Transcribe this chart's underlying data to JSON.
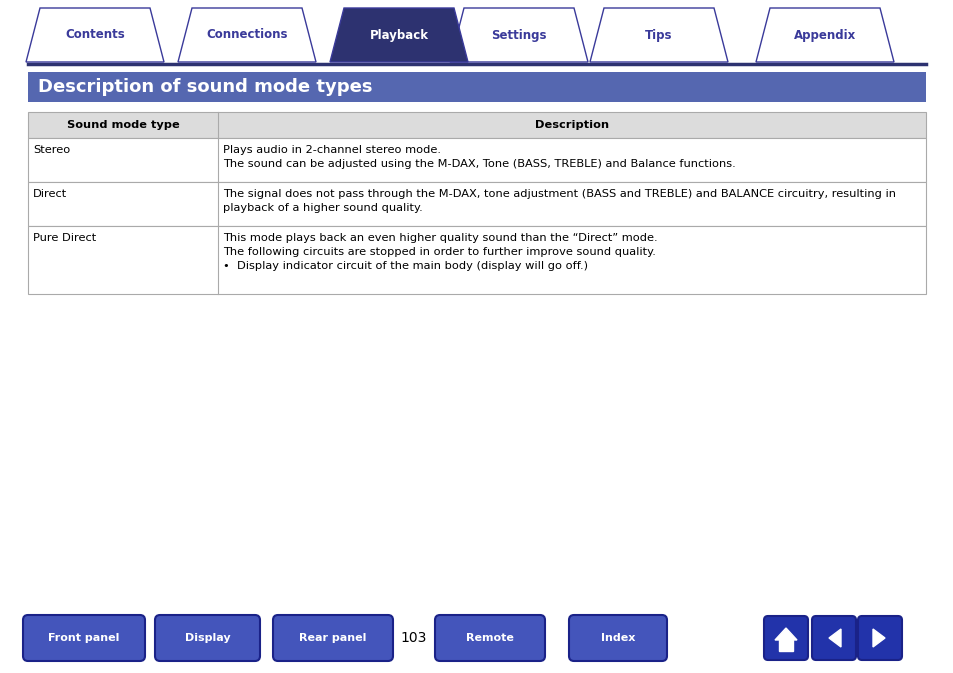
{
  "bg_color": "#ffffff",
  "nav_tabs": [
    "Contents",
    "Connections",
    "Playback",
    "Settings",
    "Tips",
    "Appendix"
  ],
  "nav_active": "Playback",
  "nav_active_bg": "#2d3270",
  "nav_inactive_bg": "#ffffff",
  "nav_text_color_active": "#ffffff",
  "nav_text_color_inactive": "#3a3a9a",
  "nav_border_color": "#3a3a9a",
  "nav_line_color": "#2d3270",
  "title": "Description of sound mode types",
  "title_bg": "#5567b0",
  "title_text_color": "#ffffff",
  "table_header": [
    "Sound mode type",
    "Description"
  ],
  "table_header_bg": "#dcdcdc",
  "table_border_color": "#aaaaaa",
  "table_rows": [
    {
      "type": "Stereo",
      "desc_lines": [
        "Plays audio in 2-channel stereo mode.",
        "The sound can be adjusted using the M-DAX, Tone (BASS, TREBLE) and Balance functions."
      ]
    },
    {
      "type": "Direct",
      "desc_lines": [
        "The signal does not pass through the M-DAX, tone adjustment (BASS and TREBLE) and BALANCE circuitry, resulting in",
        "playback of a higher sound quality."
      ]
    },
    {
      "type": "Pure Direct",
      "desc_lines": [
        "This mode plays back an even higher quality sound than the “Direct” mode.",
        "The following circuits are stopped in order to further improve sound quality.",
        "•  Display indicator circuit of the main body (display will go off.)"
      ]
    }
  ],
  "footer_buttons": [
    "Front panel",
    "Display",
    "Rear panel",
    "Remote",
    "Index"
  ],
  "footer_page": "103",
  "footer_btn_color": "#4455bb",
  "footer_text_color": "#ffffff"
}
